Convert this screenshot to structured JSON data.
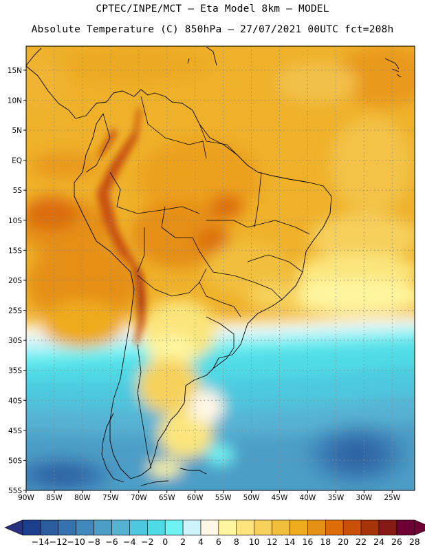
{
  "title": {
    "line1": "CPTEC/INPE/MCT —  Eta Model 8km — MODEL",
    "line2": "Absolute Temperature (C) 850hPa — 27/07/2021 00UTC fct=208h"
  },
  "axes": {
    "lat_labels": [
      "15N",
      "10N",
      "5N",
      "EQ",
      "5S",
      "10S",
      "15S",
      "20S",
      "25S",
      "30S",
      "35S",
      "40S",
      "45S",
      "50S",
      "55S"
    ],
    "lon_labels": [
      "90W",
      "85W",
      "80W",
      "75W",
      "70W",
      "65W",
      "60W",
      "55W",
      "50W",
      "45W",
      "40W",
      "35W",
      "30W",
      "25W"
    ],
    "lat_values": [
      15,
      10,
      5,
      0,
      -5,
      -10,
      -15,
      -20,
      -25,
      -30,
      -35,
      -40,
      -45,
      -50,
      -55
    ],
    "lon_values": [
      -90,
      -85,
      -80,
      -75,
      -70,
      -65,
      -60,
      -55,
      -50,
      -45,
      -40,
      -35,
      -30,
      -25
    ]
  },
  "colorbar": {
    "labels": [
      "-14",
      "-12",
      "-10",
      "-8",
      "-6",
      "-4",
      "-2",
      "0",
      "2",
      "4",
      "6",
      "8",
      "10",
      "12",
      "14",
      "16",
      "18",
      "20",
      "22",
      "24",
      "26",
      "28"
    ],
    "colors": [
      "#1c3f8e",
      "#2a5c9e",
      "#3572ae",
      "#3f88bb",
      "#4c9ec7",
      "#56b2d3",
      "#4ec8de",
      "#4fdbe6",
      "#6ff2f2",
      "#cff3fb",
      "#fff7e6",
      "#fff59f",
      "#fbe57c",
      "#f6d25c",
      "#f1bf3c",
      "#eeab1c",
      "#e58f14",
      "#dc6d08",
      "#c85008",
      "#a73408",
      "#861a16",
      "#6f0033"
    ],
    "under_color": "#27317e",
    "over_color": "#6f0033"
  }
}
